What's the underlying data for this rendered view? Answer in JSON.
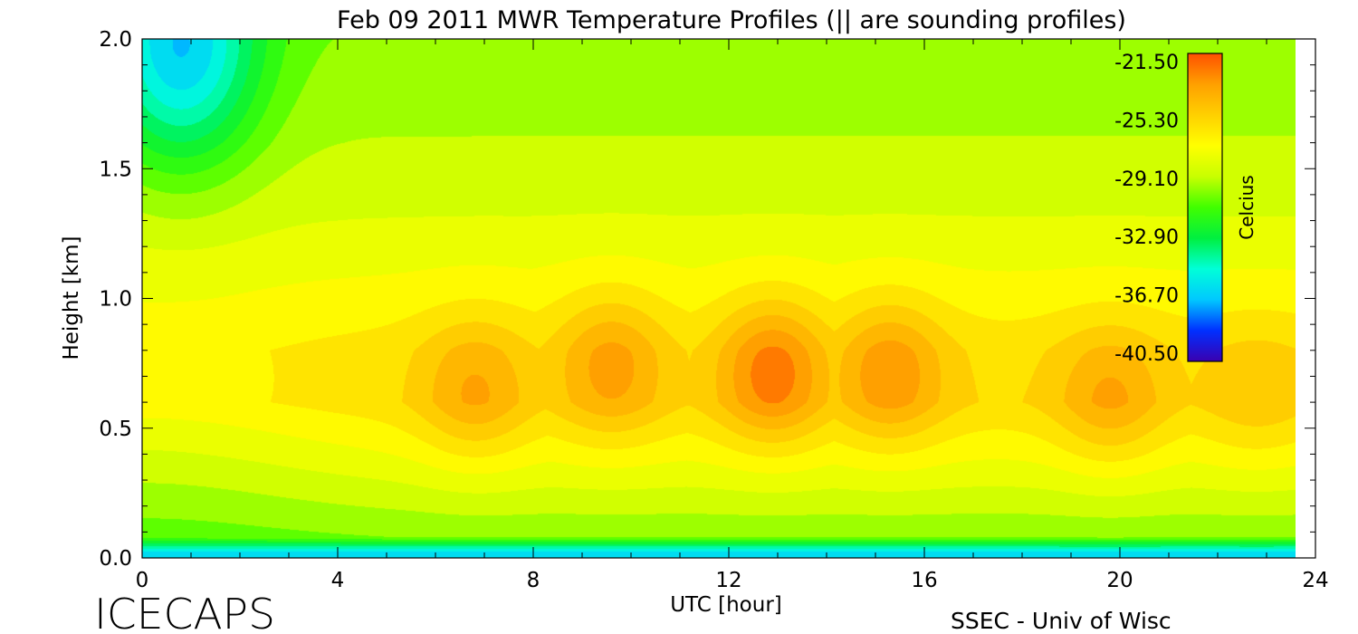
{
  "chart_data": {
    "type": "heatmap",
    "title": "Feb 09 2011 MWR Temperature Profiles (|| are sounding profiles)",
    "xlabel": "UTC [hour]",
    "ylabel": "Height [km]",
    "xlim": [
      0,
      24
    ],
    "ylim": [
      0,
      2.0
    ],
    "x_ticks": [
      "0",
      "4",
      "8",
      "12",
      "16",
      "20",
      "24"
    ],
    "y_ticks": [
      "0.0",
      "0.5",
      "1.0",
      "1.5",
      "2.0"
    ],
    "colorbar": {
      "label": "Celcius",
      "range": [
        -40.5,
        -21.5
      ],
      "ticks": [
        "-21.50",
        "-25.30",
        "-29.10",
        "-32.90",
        "-36.70",
        "-40.50"
      ],
      "colors": [
        "#3a00b0",
        "#0030ff",
        "#00c8ff",
        "#00ffd8",
        "#00f040",
        "#40ff00",
        "#c8ff00",
        "#ffff00",
        "#ffd000",
        "#ffa000",
        "#ff5000"
      ]
    },
    "temperature_field": {
      "units": "Celsius",
      "data_extent_hours": [
        0,
        23.6
      ],
      "surface_layer": {
        "height_km": 0.02,
        "temperature": -36.0
      },
      "background": [
        {
          "height_km": 0.05,
          "temperature": -30.3
        },
        {
          "height_km": 0.2,
          "temperature": -29.0
        },
        {
          "height_km": 0.4,
          "temperature": -27.3
        },
        {
          "height_km": 0.6,
          "temperature": -25.8
        },
        {
          "height_km": 0.8,
          "temperature": -26.0
        },
        {
          "height_km": 1.0,
          "temperature": -27.0
        },
        {
          "height_km": 1.3,
          "temperature": -28.3
        },
        {
          "height_km": 1.6,
          "temperature": -29.2
        },
        {
          "height_km": 2.0,
          "temperature": -30.0
        }
      ],
      "warm_cores": [
        {
          "utc": 6.8,
          "height_km": 0.65,
          "temperature": -23.6
        },
        {
          "utc": 9.6,
          "height_km": 0.75,
          "temperature": -23.3
        },
        {
          "utc": 12.9,
          "height_km": 0.72,
          "temperature": -22.3
        },
        {
          "utc": 15.3,
          "height_km": 0.72,
          "temperature": -23.0
        },
        {
          "utc": 19.8,
          "height_km": 0.62,
          "temperature": -23.6
        },
        {
          "utc": 22.8,
          "height_km": 0.62,
          "temperature": -24.8
        }
      ],
      "cold_region": {
        "utc": 0.8,
        "height_km": 1.95,
        "temperature": -36.5
      }
    }
  },
  "footer": {
    "left": "ICECAPS",
    "right": "SSEC - Univ of Wisc"
  }
}
